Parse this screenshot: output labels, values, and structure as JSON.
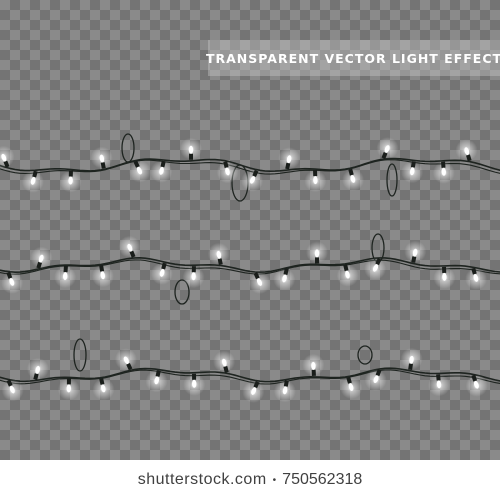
{
  "banner": {
    "title": "TRANSPARENT VECTOR LIGHT EFFECT"
  },
  "footer": {
    "brand": "shutterstock.com",
    "separator": "•",
    "image_id": "750562318"
  },
  "colors": {
    "wire": "#1e2420",
    "socket": "#1a1e1b",
    "bulb": "#ffffff",
    "glow": "#ffffff"
  },
  "icons": [
    "string-light-icon",
    "light-bulb-icon"
  ]
}
